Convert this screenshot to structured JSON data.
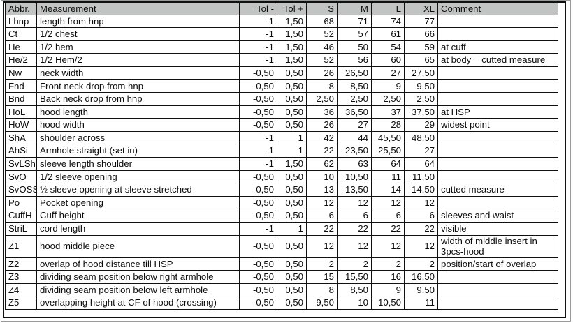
{
  "colors": {
    "header_bg": "#c2c4c4",
    "grid_border": "#101010"
  },
  "table": {
    "columns": [
      {
        "key": "abbr",
        "label": "Abbr.",
        "align": "left"
      },
      {
        "key": "measurement",
        "label": "Measurement",
        "align": "left"
      },
      {
        "key": "tol_minus",
        "label": "Tol -",
        "align": "right"
      },
      {
        "key": "tol_plus",
        "label": "Tol +",
        "align": "right"
      },
      {
        "key": "s",
        "label": "S",
        "align": "right"
      },
      {
        "key": "m",
        "label": "M",
        "align": "right"
      },
      {
        "key": "l",
        "label": "L",
        "align": "right"
      },
      {
        "key": "xl",
        "label": "XL",
        "align": "right"
      },
      {
        "key": "comment",
        "label": "Comment",
        "align": "left"
      }
    ],
    "rows": [
      {
        "abbr": "Lhnp",
        "measurement": "length from hnp",
        "tol_minus": "-1",
        "tol_plus": "1,50",
        "s": "68",
        "m": "71",
        "l": "74",
        "xl": "77",
        "comment": ""
      },
      {
        "abbr": "Ct",
        "measurement": "1/2 chest",
        "tol_minus": "-1",
        "tol_plus": "1,50",
        "s": "52",
        "m": "57",
        "l": "61",
        "xl": "66",
        "comment": ""
      },
      {
        "abbr": "He",
        "measurement": "1/2 hem",
        "tol_minus": "-1",
        "tol_plus": "1,50",
        "s": "46",
        "m": "50",
        "l": "54",
        "xl": "59",
        "comment": "at cuff"
      },
      {
        "abbr": "He/2",
        "measurement": "1/2 Hem/2",
        "tol_minus": "-1",
        "tol_plus": "1,50",
        "s": "52",
        "m": "56",
        "l": "60",
        "xl": "65",
        "comment": "at body = cutted measure"
      },
      {
        "abbr": "Nw",
        "measurement": "neck width",
        "tol_minus": "-0,50",
        "tol_plus": "0,50",
        "s": "26",
        "m": "26,50",
        "l": "27",
        "xl": "27,50",
        "comment": ""
      },
      {
        "abbr": "Fnd",
        "measurement": "Front neck drop from hnp",
        "tol_minus": "-0,50",
        "tol_plus": "0,50",
        "s": "8",
        "m": "8,50",
        "l": "9",
        "xl": "9,50",
        "comment": ""
      },
      {
        "abbr": "Bnd",
        "measurement": "Back neck drop from hnp",
        "tol_minus": "-0,50",
        "tol_plus": "0,50",
        "s": "2,50",
        "m": "2,50",
        "l": "2,50",
        "xl": "2,50",
        "comment": ""
      },
      {
        "abbr": "HoL",
        "measurement": "hood length",
        "tol_minus": "-0,50",
        "tol_plus": "0,50",
        "s": "36",
        "m": "36,50",
        "l": "37",
        "xl": "37,50",
        "comment": "at HSP"
      },
      {
        "abbr": "HoW",
        "measurement": "hood width",
        "tol_minus": "-0,50",
        "tol_plus": "0,50",
        "s": "26",
        "m": "27",
        "l": "28",
        "xl": "29",
        "comment": "widest point"
      },
      {
        "abbr": "ShA",
        "measurement": "shoulder across",
        "tol_minus": "-1",
        "tol_plus": "1",
        "s": "42",
        "m": "44",
        "l": "45,50",
        "xl": "48,50",
        "comment": ""
      },
      {
        "abbr": "AhSi",
        "measurement": "Armhole straight (set in)",
        "tol_minus": "-1",
        "tol_plus": "1",
        "s": "22",
        "m": "23,50",
        "l": "25,50",
        "xl": "27",
        "comment": ""
      },
      {
        "abbr": "SvLSh",
        "measurement": "sleeve length shoulder",
        "tol_minus": "-1",
        "tol_plus": "1,50",
        "s": "62",
        "m": "63",
        "l": "64",
        "xl": "64",
        "comment": ""
      },
      {
        "abbr": "SvO",
        "measurement": "1/2 sleeve opening",
        "tol_minus": "-0,50",
        "tol_plus": "0,50",
        "s": "10",
        "m": "10,50",
        "l": "11",
        "xl": "11,50",
        "comment": ""
      },
      {
        "abbr": "SvOSS",
        "measurement": "½ sleeve opening at sleeve stretched",
        "tol_minus": "-0,50",
        "tol_plus": "0,50",
        "s": "13",
        "m": "13,50",
        "l": "14",
        "xl": "14,50",
        "comment": "cutted measure"
      },
      {
        "abbr": "Po",
        "measurement": "Pocket opening",
        "tol_minus": "-0,50",
        "tol_plus": "0,50",
        "s": "12",
        "m": "12",
        "l": "12",
        "xl": "12",
        "comment": ""
      },
      {
        "abbr": "CuffH",
        "measurement": "Cuff height",
        "tol_minus": "-0,50",
        "tol_plus": "0,50",
        "s": "6",
        "m": "6",
        "l": "6",
        "xl": "6",
        "comment": "sleeves and waist"
      },
      {
        "abbr": "StriL",
        "measurement": "cord length",
        "tol_minus": "-1",
        "tol_plus": "1",
        "s": "22",
        "m": "22",
        "l": "22",
        "xl": "22",
        "comment": "visible"
      },
      {
        "abbr": "Z1",
        "measurement": "hood middle piece",
        "tol_minus": "-0,50",
        "tol_plus": "0,50",
        "s": "12",
        "m": "12",
        "l": "12",
        "xl": "12",
        "comment": "width of middle insert in 3pcs-hood"
      },
      {
        "abbr": "Z2",
        "measurement": "overlap of hood distance till HSP",
        "tol_minus": "-0,50",
        "tol_plus": "0,50",
        "s": "2",
        "m": "2",
        "l": "2",
        "xl": "2",
        "comment": "position/start of overlap"
      },
      {
        "abbr": "Z3",
        "measurement": "dividing seam position below right armhole",
        "tol_minus": "-0,50",
        "tol_plus": "0,50",
        "s": "15",
        "m": "15,50",
        "l": "16",
        "xl": "16,50",
        "comment": ""
      },
      {
        "abbr": "Z4",
        "measurement": "dividing seam position below left armhole",
        "tol_minus": "-0,50",
        "tol_plus": "0,50",
        "s": "8",
        "m": "8,50",
        "l": "9",
        "xl": "9,50",
        "comment": ""
      },
      {
        "abbr": "Z5",
        "measurement": "overlapping height at CF of hood (crossing)",
        "tol_minus": "-0,50",
        "tol_plus": "0,50",
        "s": "9,50",
        "m": "10",
        "l": "10,50",
        "xl": "11",
        "comment": ""
      }
    ]
  }
}
